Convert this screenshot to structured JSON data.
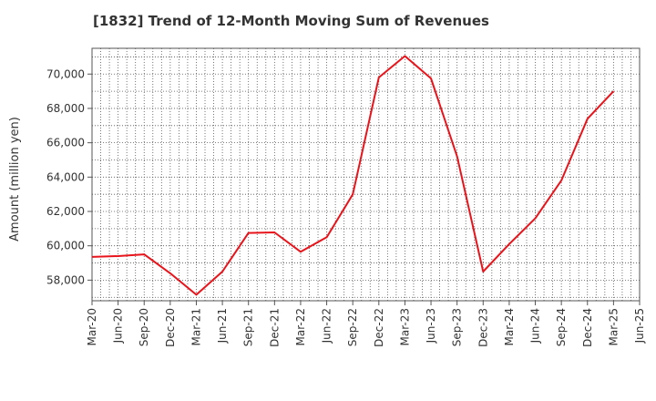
{
  "chart_data": {
    "type": "line",
    "title": "[1832]  Trend of 12-Month Moving Sum of Revenues",
    "xlabel": "",
    "ylabel": "Amount (million yen)",
    "x_ticks": [
      "Mar-20",
      "Jun-20",
      "Sep-20",
      "Dec-20",
      "Mar-21",
      "Jun-21",
      "Sep-21",
      "Dec-21",
      "Mar-22",
      "Jun-22",
      "Sep-22",
      "Dec-22",
      "Mar-23",
      "Jun-23",
      "Sep-23",
      "Dec-23",
      "Mar-24",
      "Jun-24",
      "Sep-24",
      "Dec-24",
      "Mar-25",
      "Jun-25"
    ],
    "y_ticks": [
      58000,
      60000,
      62000,
      64000,
      66000,
      68000,
      70000
    ],
    "y_tick_labels": [
      "58,000",
      "60,000",
      "62,000",
      "64,000",
      "66,000",
      "68,000",
      "70,000"
    ],
    "ylim": [
      56800,
      71500
    ],
    "grid": true,
    "series": [
      {
        "color": "#e8141b",
        "x": [
          "Mar-20",
          "Jun-20",
          "Sep-20",
          "Dec-20",
          "Mar-21",
          "Jun-21",
          "Sep-21",
          "Dec-21",
          "Mar-22",
          "Jun-22",
          "Sep-22",
          "Dec-22",
          "Mar-23",
          "Jun-23",
          "Sep-23",
          "Dec-23",
          "Mar-24",
          "Jun-24",
          "Sep-24",
          "Dec-24",
          "Mar-25"
        ],
        "values": [
          59350,
          59400,
          59500,
          58400,
          57150,
          58500,
          60750,
          60780,
          59650,
          60500,
          63000,
          69800,
          71050,
          69750,
          65200,
          58500,
          60100,
          61600,
          63800,
          67400,
          69000
        ]
      }
    ]
  }
}
